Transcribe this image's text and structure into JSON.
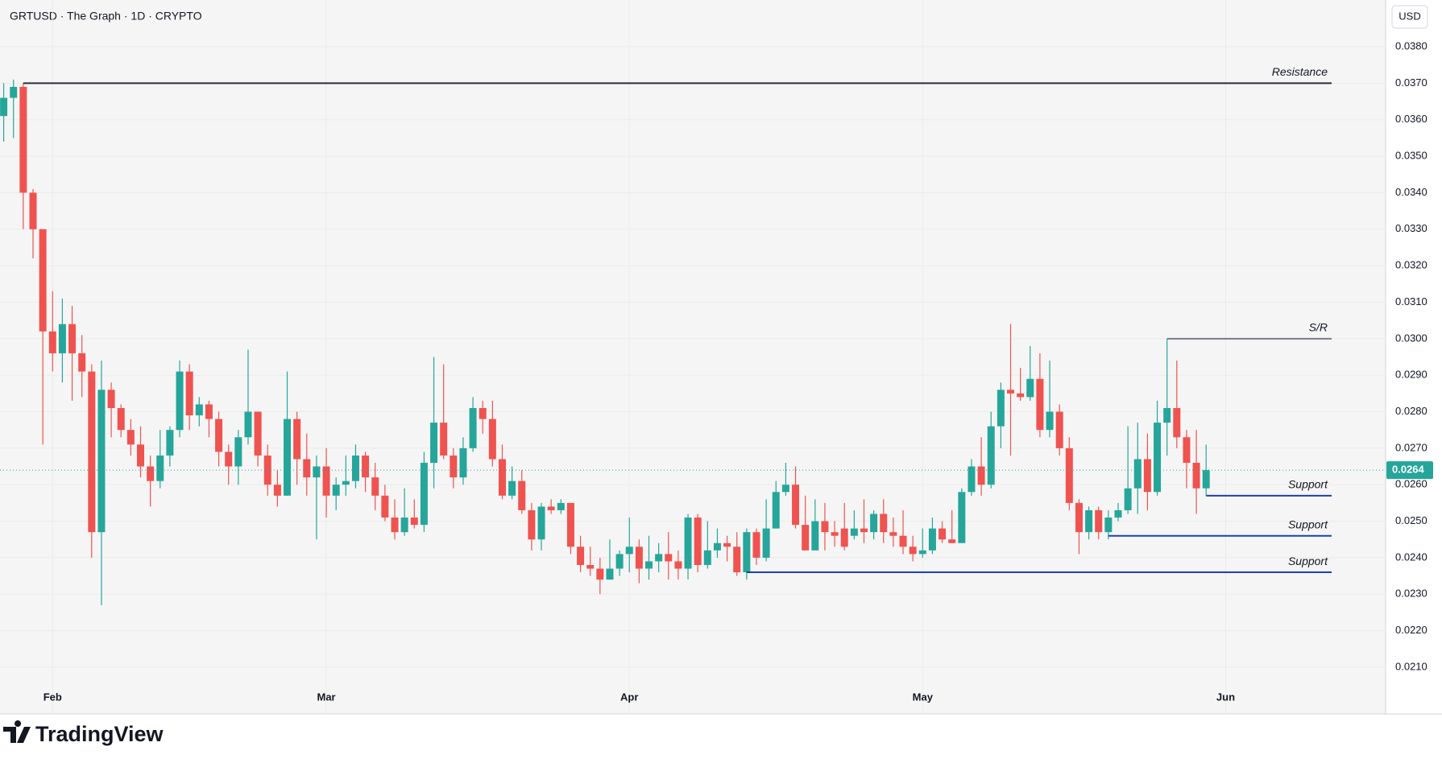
{
  "chart_data": {
    "type": "candlestick",
    "title": "GRTUSD · The Graph · 1D · CRYPTO",
    "currency": "USD",
    "categories": [
      null,
      null,
      null,
      null,
      null,
      "Feb",
      null,
      null,
      null,
      null,
      null,
      null,
      null,
      null,
      null,
      null,
      null,
      null,
      null,
      null,
      null,
      null,
      null,
      null,
      null,
      null,
      null,
      null,
      null,
      null,
      null,
      null,
      null,
      "Mar",
      null,
      null,
      null,
      null,
      null,
      null,
      null,
      null,
      null,
      null,
      null,
      null,
      null,
      null,
      null,
      null,
      null,
      null,
      null,
      null,
      null,
      null,
      null,
      null,
      null,
      null,
      null,
      null,
      null,
      null,
      "Apr",
      null,
      null,
      null,
      null,
      null,
      null,
      null,
      null,
      null,
      null,
      null,
      null,
      null,
      null,
      null,
      null,
      null,
      null,
      null,
      null,
      null,
      null,
      null,
      null,
      null,
      null,
      null,
      null,
      null,
      "May",
      null,
      null,
      null,
      null,
      null,
      null,
      null,
      null,
      null,
      null,
      null,
      null,
      null,
      null,
      null,
      null,
      null,
      null,
      null,
      null,
      null,
      null,
      null,
      null,
      null,
      null,
      null,
      null,
      null,
      null,
      "Jun"
    ],
    "open": [
      0.0361,
      0.0366,
      0.0369,
      0.034,
      0.033,
      0.0302,
      0.0296,
      0.0304,
      0.0296,
      0.0291,
      0.0247,
      0.0286,
      0.0281,
      0.0275,
      0.0271,
      0.0265,
      0.0261,
      0.0268,
      0.0275,
      0.0291,
      0.0279,
      0.0282,
      0.0278,
      0.0269,
      0.0265,
      0.0273,
      0.028,
      0.0268,
      0.026,
      0.0257,
      0.0278,
      0.0267,
      0.0262,
      0.0265,
      0.0257,
      0.026,
      0.0261,
      0.0268,
      0.0262,
      0.0257,
      0.0251,
      0.0247,
      0.0251,
      0.0249,
      0.0266,
      0.0277,
      0.0268,
      0.0262,
      0.027,
      0.0281,
      0.0278,
      0.0267,
      0.0257,
      0.0261,
      0.0253,
      0.0245,
      0.0254,
      0.0253,
      0.0255,
      0.0243,
      0.0238,
      0.0237,
      0.0234,
      0.0237,
      0.0241,
      0.0243,
      0.0237,
      0.0239,
      0.0241,
      0.0239,
      0.0237,
      0.0251,
      0.0238,
      0.0242,
      0.0244,
      0.0243,
      0.0236,
      0.0247,
      0.024,
      0.0248,
      0.0258,
      0.026,
      0.0249,
      0.0242,
      0.025,
      0.0247,
      0.0248,
      0.0246,
      0.0248,
      0.0247,
      0.0252,
      0.0247,
      0.0246,
      0.0243,
      0.0241,
      0.0242,
      0.0248,
      0.0245,
      0.0244,
      0.0258,
      0.0265,
      0.026,
      0.0276,
      0.0286,
      0.0285,
      0.0284,
      0.0289,
      0.0275,
      0.028,
      0.027,
      0.0255,
      0.0247,
      0.0253,
      0.0247,
      0.0251,
      0.0253,
      0.0259,
      0.0267,
      0.0258,
      0.0277,
      0.0281,
      0.0273,
      0.0266,
      0.0259,
      null,
      null
    ],
    "high": [
      0.037,
      0.0371,
      0.037,
      0.0341,
      0.033,
      0.0313,
      0.0311,
      0.0309,
      0.0301,
      0.0293,
      0.0294,
      0.0288,
      0.0282,
      0.0278,
      0.0276,
      0.0268,
      0.0275,
      0.0276,
      0.0294,
      0.0293,
      0.0284,
      0.0283,
      0.028,
      0.0271,
      0.0275,
      0.0297,
      0.028,
      0.0271,
      0.0264,
      0.0291,
      0.028,
      0.0274,
      0.0268,
      0.027,
      0.0262,
      0.0268,
      0.0271,
      0.0269,
      0.0266,
      0.026,
      0.0256,
      0.0259,
      0.0256,
      0.0269,
      0.0295,
      0.0293,
      0.027,
      0.0273,
      0.0284,
      0.0283,
      0.0283,
      0.0271,
      0.0265,
      0.0264,
      0.0255,
      0.0255,
      0.0256,
      0.0256,
      0.0255,
      0.0246,
      0.0243,
      0.024,
      0.0245,
      0.0242,
      0.0251,
      0.0245,
      0.0246,
      0.0244,
      0.0247,
      0.0242,
      0.0252,
      0.0252,
      0.025,
      0.0248,
      0.0246,
      0.0247,
      0.0248,
      0.0248,
      0.0256,
      0.0261,
      0.0266,
      0.0265,
      0.0257,
      0.0256,
      0.0255,
      0.025,
      0.0255,
      0.0253,
      0.0256,
      0.0253,
      0.0256,
      0.0251,
      0.0253,
      0.0246,
      0.0248,
      0.0251,
      0.025,
      0.0253,
      0.0259,
      0.0267,
      0.0273,
      0.028,
      0.0288,
      0.0304,
      0.0292,
      0.0298,
      0.0296,
      0.0294,
      0.0282,
      0.0273,
      0.0256,
      0.0254,
      0.0254,
      0.0253,
      0.0255,
      0.0276,
      0.0277,
      0.0274,
      0.0283,
      0.03,
      0.0294,
      0.0275,
      0.0275,
      0.0271,
      null,
      null
    ],
    "low": [
      0.0354,
      0.0355,
      0.033,
      0.0322,
      0.0271,
      0.0291,
      0.0288,
      0.0283,
      0.0284,
      0.024,
      0.0227,
      0.0273,
      0.0273,
      0.0268,
      0.0262,
      0.0254,
      0.0259,
      0.0265,
      0.0273,
      0.0275,
      0.0276,
      0.0273,
      0.0265,
      0.026,
      0.026,
      0.0271,
      0.0265,
      0.0257,
      0.0254,
      0.0257,
      0.026,
      0.0257,
      0.0245,
      0.0251,
      0.0253,
      0.0257,
      0.0259,
      0.0258,
      0.0253,
      0.025,
      0.0245,
      0.0246,
      0.0248,
      0.0247,
      0.0259,
      0.0267,
      0.0259,
      0.026,
      0.0269,
      0.0274,
      0.0265,
      0.0256,
      0.0256,
      0.0252,
      0.0242,
      0.0242,
      0.0252,
      0.0252,
      0.0241,
      0.0236,
      0.0235,
      0.023,
      0.0234,
      0.0235,
      0.0236,
      0.0233,
      0.0234,
      0.0236,
      0.0234,
      0.0234,
      0.0234,
      0.0236,
      0.0237,
      0.024,
      0.0239,
      0.0235,
      0.0234,
      0.0238,
      0.0239,
      0.0248,
      0.0257,
      0.0248,
      0.0242,
      0.0242,
      0.0242,
      0.0243,
      0.0242,
      0.0245,
      0.0244,
      0.0245,
      0.0244,
      0.0243,
      0.0241,
      0.0239,
      0.024,
      0.0241,
      0.0244,
      0.0244,
      0.0244,
      0.0257,
      0.0257,
      0.0259,
      0.027,
      0.0268,
      0.0283,
      0.0283,
      0.0273,
      0.0273,
      0.0268,
      0.0253,
      0.0241,
      0.0245,
      0.0245,
      0.0245,
      0.025,
      0.0252,
      0.0252,
      0.0253,
      0.0257,
      0.0268,
      0.027,
      0.0259,
      0.0252,
      0.0257,
      null,
      null
    ],
    "close": [
      0.0366,
      0.0369,
      0.034,
      0.033,
      0.0302,
      0.0296,
      0.0304,
      0.0296,
      0.0291,
      0.0247,
      0.0286,
      0.0281,
      0.0275,
      0.0271,
      0.0265,
      0.0261,
      0.0268,
      0.0275,
      0.0291,
      0.0279,
      0.0282,
      0.0278,
      0.0269,
      0.0265,
      0.0273,
      0.028,
      0.0268,
      0.026,
      0.0257,
      0.0278,
      0.0267,
      0.0262,
      0.0265,
      0.0257,
      0.026,
      0.0261,
      0.0268,
      0.0262,
      0.0257,
      0.0251,
      0.0247,
      0.0251,
      0.0249,
      0.0266,
      0.0277,
      0.0268,
      0.0262,
      0.027,
      0.0281,
      0.0278,
      0.0267,
      0.0257,
      0.0261,
      0.0253,
      0.0245,
      0.0254,
      0.0253,
      0.0255,
      0.0243,
      0.0238,
      0.0237,
      0.0234,
      0.0237,
      0.0241,
      0.0243,
      0.0237,
      0.0239,
      0.0241,
      0.0239,
      0.0237,
      0.0251,
      0.0238,
      0.0242,
      0.0244,
      0.0243,
      0.0236,
      0.0247,
      0.024,
      0.0248,
      0.0258,
      0.026,
      0.0249,
      0.0242,
      0.025,
      0.0247,
      0.0246,
      0.0243,
      0.0248,
      0.0247,
      0.0252,
      0.0247,
      0.0246,
      0.0243,
      0.0241,
      0.0242,
      0.0248,
      0.0245,
      0.0244,
      0.0258,
      0.0265,
      0.026,
      0.0276,
      0.0286,
      0.0285,
      0.0284,
      0.0289,
      0.0275,
      0.028,
      0.027,
      0.0255,
      0.0247,
      0.0253,
      0.0247,
      0.0251,
      0.0253,
      0.0259,
      0.0267,
      0.0258,
      0.0277,
      0.0281,
      0.0273,
      0.0266,
      0.0259,
      0.0264,
      null,
      null
    ],
    "up_color": "#26a69a",
    "down_color": "#ef5350",
    "last_price": 0.0264,
    "ylim": [
      0.01972,
      0.03928
    ],
    "yticks": [
      {
        "value": 0.021,
        "label": "0.0210"
      },
      {
        "value": 0.022,
        "label": "0.0220"
      },
      {
        "value": 0.023,
        "label": "0.0230"
      },
      {
        "value": 0.024,
        "label": "0.0240"
      },
      {
        "value": 0.025,
        "label": "0.0250"
      },
      {
        "value": 0.026,
        "label": "0.0260"
      },
      {
        "value": 0.027,
        "label": "0.0270"
      },
      {
        "value": 0.028,
        "label": "0.0280"
      },
      {
        "value": 0.029,
        "label": "0.0290"
      },
      {
        "value": 0.03,
        "label": "0.0300"
      },
      {
        "value": 0.031,
        "label": "0.0310"
      },
      {
        "value": 0.032,
        "label": "0.0320"
      },
      {
        "value": 0.033,
        "label": "0.0330"
      },
      {
        "value": 0.034,
        "label": "0.0340"
      },
      {
        "value": 0.035,
        "label": "0.0350"
      },
      {
        "value": 0.036,
        "label": "0.0360"
      },
      {
        "value": 0.037,
        "label": "0.0370"
      },
      {
        "value": 0.038,
        "label": "0.0380"
      }
    ],
    "grid": true,
    "lines": [
      {
        "name": "Resistance",
        "value": 0.037,
        "start": 2,
        "color": "#2a2e39"
      },
      {
        "name": "S/R",
        "value": 0.03,
        "start": 119,
        "color": "#787b86"
      },
      {
        "name": "Support",
        "value": 0.0257,
        "start": 123,
        "color": "#1e3fae"
      },
      {
        "name": "Support",
        "value": 0.0246,
        "start": 113,
        "color": "#1e3fae"
      },
      {
        "name": "Support",
        "value": 0.0236,
        "start": 76,
        "color": "#1e3fae"
      }
    ]
  },
  "footer": {
    "brand": "TradingView"
  }
}
